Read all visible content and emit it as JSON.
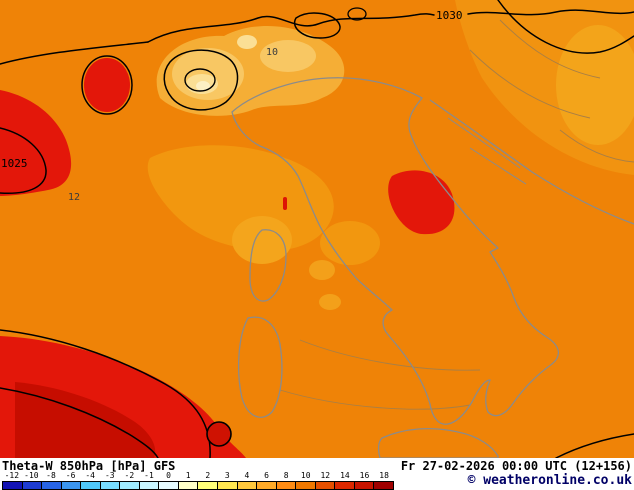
{
  "footer": {
    "param_label": "Theta-W 850hPa [hPa] GFS",
    "datetime_label": "Fr 27-02-2026 00:00 UTC (12+156)",
    "copyright": "© weatheronline.co.uk"
  },
  "colorscale": {
    "labels": [
      "-12",
      "-10",
      "-8",
      "-6",
      "-4",
      "-3",
      "-2",
      "-1",
      "0",
      "1",
      "2",
      "3",
      "4",
      "6",
      "8",
      "10",
      "12",
      "14",
      "16",
      "18"
    ],
    "colors": [
      "#1414b4",
      "#1e3cd2",
      "#2864e6",
      "#3c96f0",
      "#50c8fa",
      "#78dcff",
      "#a0ebff",
      "#c8f5ff",
      "#e6fbff",
      "#ffffc8",
      "#ffff78",
      "#ffe650",
      "#ffc83c",
      "#ffaa28",
      "#ff8c14",
      "#f07800",
      "#e65000",
      "#dc2800",
      "#c81400",
      "#a00000"
    ]
  },
  "map": {
    "palette": {
      "base_orange": "#ef8307",
      "amber": "#f19310",
      "pale_alps": "#f5ae36",
      "pale_yellow": "#fbdf95",
      "red": "#e3170a",
      "dark_red": "#c60d00",
      "coastline_gray": "#8b8b8b",
      "isobar_black": "#000000"
    },
    "contour_labels": [
      {
        "id": "isobar-1030",
        "text": "1030"
      },
      {
        "id": "isobar-1025",
        "text": "1025"
      },
      {
        "id": "theta-10",
        "text": "10"
      },
      {
        "id": "theta-12",
        "text": "12"
      }
    ]
  }
}
